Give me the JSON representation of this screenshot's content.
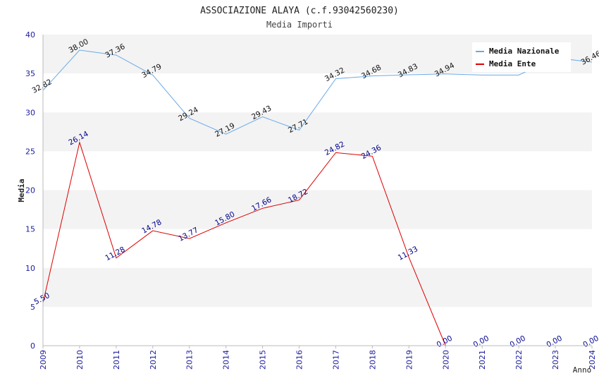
{
  "chart_data": {
    "type": "line",
    "title": "ASSOCIAZIONE ALAYA (c.f.93042560230)",
    "subtitle": "Media Importi",
    "xlabel": "Anno",
    "ylabel": "Media",
    "ylim": [
      0,
      40
    ],
    "yticks": [
      0,
      5,
      10,
      15,
      20,
      25,
      30,
      35,
      40
    ],
    "grid": "horizontal bands",
    "legend_position": "top-right",
    "categories": [
      "2009",
      "2010",
      "2011",
      "2012",
      "2013",
      "2014",
      "2015",
      "2016",
      "2017",
      "2018",
      "2019",
      "2020",
      "2021",
      "2022",
      "2023",
      "2024"
    ],
    "series": [
      {
        "name": "Media Nazionale",
        "color": "#6aaae8",
        "values": [
          32.82,
          38.0,
          37.36,
          34.79,
          29.24,
          27.19,
          29.43,
          27.71,
          34.32,
          34.68,
          34.83,
          34.94,
          34.8,
          34.8,
          37.0,
          36.46
        ],
        "labels": [
          "32.82",
          "38.00",
          "37.36",
          "34.79",
          "29.24",
          "27.19",
          "29.43",
          "27.71",
          "34.32",
          "34.68",
          "34.83",
          "34.94",
          "",
          "",
          "",
          "36.46"
        ]
      },
      {
        "name": "Media Ente",
        "color": "#dd0000",
        "label_color": "#00008b",
        "values": [
          5.5,
          26.14,
          11.28,
          14.78,
          13.77,
          15.8,
          17.66,
          18.72,
          24.82,
          24.36,
          11.33,
          0.0,
          0.0,
          0.0,
          0.0,
          0.0
        ],
        "labels": [
          "5.50",
          "26.14",
          "11.28",
          "14.78",
          "13.77",
          "15.80",
          "17.66",
          "18.72",
          "24.82",
          "24.36",
          "11.33",
          "0.00",
          "0.00",
          "0.00",
          "0.00",
          "0.00"
        ],
        "line_until_index": 11
      }
    ]
  }
}
